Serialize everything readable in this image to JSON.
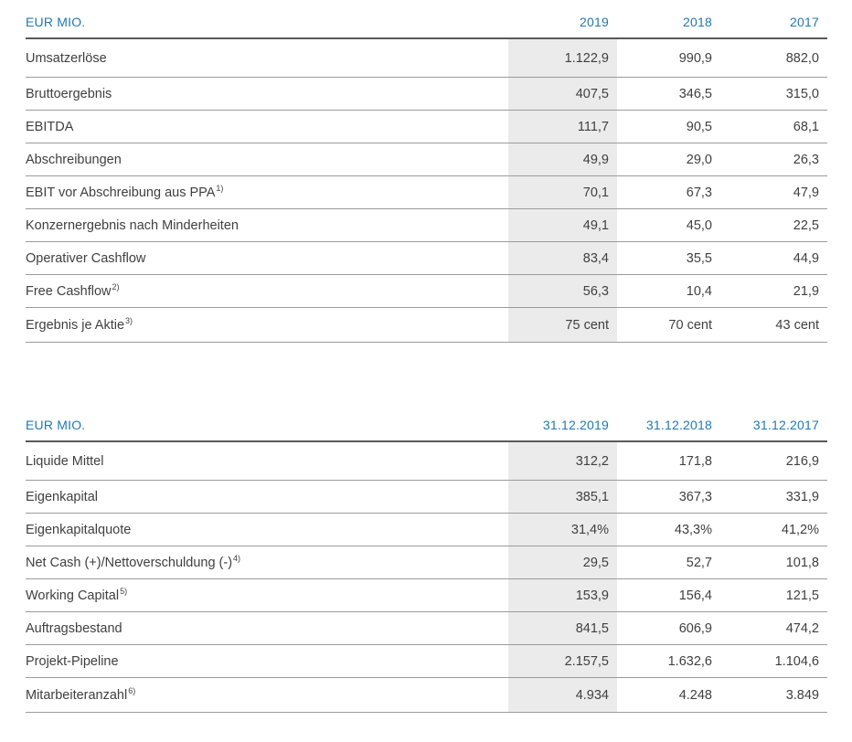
{
  "accent_color": "#2278b0",
  "highlight_color": "#ebebeb",
  "income_table": {
    "unit_label": "EUR MIO.",
    "columns": [
      "2019",
      "2018",
      "2017"
    ],
    "rows": [
      {
        "label": "Umsatzerlöse",
        "sup": "",
        "values": [
          "1.122,9",
          "990,9",
          "882,0"
        ]
      },
      {
        "label": "Bruttoergebnis",
        "sup": "",
        "values": [
          "407,5",
          "346,5",
          "315,0"
        ]
      },
      {
        "label": "EBITDA",
        "sup": "",
        "values": [
          "111,7",
          "90,5",
          "68,1"
        ]
      },
      {
        "label": "Abschreibungen",
        "sup": "",
        "values": [
          "49,9",
          "29,0",
          "26,3"
        ]
      },
      {
        "label": "EBIT vor Abschreibung aus PPA",
        "sup": "1)",
        "values": [
          "70,1",
          "67,3",
          "47,9"
        ]
      },
      {
        "label": "Konzernergebnis nach Minderheiten",
        "sup": "",
        "values": [
          "49,1",
          "45,0",
          "22,5"
        ]
      },
      {
        "label": "Operativer Cashflow",
        "sup": "",
        "values": [
          "83,4",
          "35,5",
          "44,9"
        ]
      },
      {
        "label": "Free Cashflow",
        "sup": "2)",
        "values": [
          "56,3",
          "10,4",
          "21,9"
        ]
      },
      {
        "label": "Ergebnis je Aktie",
        "sup": "3)",
        "values": [
          "75 cent",
          "70 cent",
          "43 cent"
        ]
      }
    ]
  },
  "balance_table": {
    "unit_label": "EUR MIO.",
    "columns": [
      "31.12.2019",
      "31.12.2018",
      "31.12.2017"
    ],
    "rows": [
      {
        "label": "Liquide Mittel",
        "sup": "",
        "values": [
          "312,2",
          "171,8",
          "216,9"
        ]
      },
      {
        "label": "Eigenkapital",
        "sup": "",
        "values": [
          "385,1",
          "367,3",
          "331,9"
        ]
      },
      {
        "label": "Eigenkapitalquote",
        "sup": "",
        "values": [
          "31,4%",
          "43,3%",
          "41,2%"
        ]
      },
      {
        "label": "Net Cash (+)/Nettoverschuldung (-)",
        "sup": "4)",
        "values": [
          "29,5",
          "52,7",
          "101,8"
        ]
      },
      {
        "label": "Working Capital",
        "sup": "5)",
        "values": [
          "153,9",
          "156,4",
          "121,5"
        ]
      },
      {
        "label": "Auftragsbestand",
        "sup": "",
        "values": [
          "841,5",
          "606,9",
          "474,2"
        ]
      },
      {
        "label": "Projekt-Pipeline",
        "sup": "",
        "values": [
          "2.157,5",
          "1.632,6",
          "1.104,6"
        ]
      },
      {
        "label": "Mitarbeiteranzahl",
        "sup": "6)",
        "values": [
          "4.934",
          "4.248",
          "3.849"
        ]
      }
    ]
  }
}
